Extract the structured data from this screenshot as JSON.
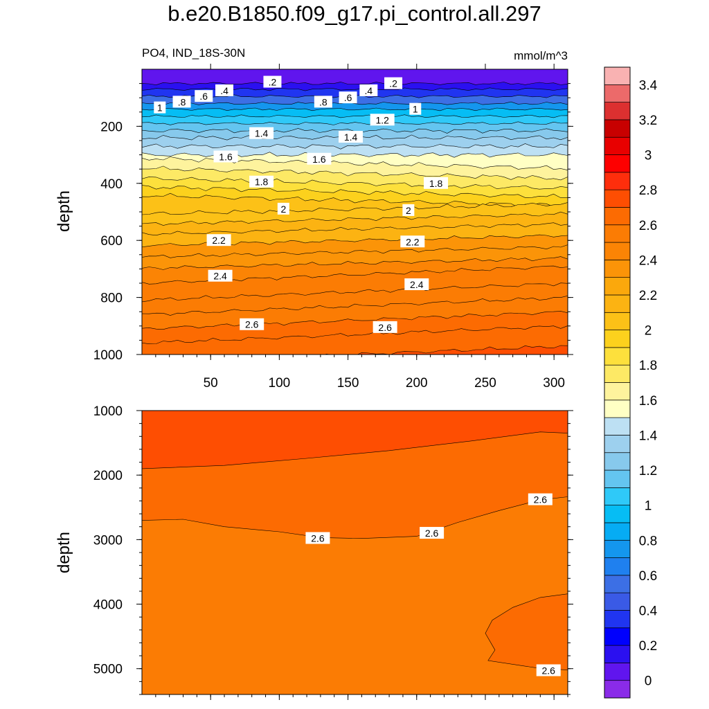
{
  "figure": {
    "title": "b.e20.B1850.f09_g17.pi_control.all.297",
    "left_label": "PO4, IND_18S-30N",
    "units": "mmol/m^3"
  },
  "chart_data": [
    {
      "type": "contour",
      "panel": "upper",
      "ylabel": "depth",
      "xlabel": "",
      "xlim": [
        0,
        310
      ],
      "ylim": [
        0,
        1000
      ],
      "y_inverted": true,
      "x_ticks": [
        50,
        100,
        150,
        200,
        250,
        300
      ],
      "y_ticks": [
        200,
        400,
        600,
        800,
        1000
      ],
      "levels": [
        0,
        0.1,
        0.2,
        0.3,
        0.4,
        0.5,
        0.6,
        0.7,
        0.8,
        0.9,
        1.0,
        1.1,
        1.2,
        1.3,
        1.4,
        1.5,
        1.6,
        1.7,
        1.8,
        1.9,
        2.0,
        2.1,
        2.2,
        2.3,
        2.4,
        2.5,
        2.6,
        2.7,
        2.8
      ],
      "level_depth_profile": {
        "depth": [
          50,
          70,
          95,
          120,
          140,
          165,
          190,
          215,
          240,
          270,
          300,
          330,
          365,
          400,
          430,
          460,
          490,
          525,
          560,
          600,
          640,
          680,
          720,
          780,
          830,
          880,
          930,
          1000
        ],
        "value": [
          0.1,
          0.3,
          0.5,
          0.7,
          0.9,
          1.0,
          1.1,
          1.2,
          1.3,
          1.4,
          1.5,
          1.6,
          1.7,
          1.8,
          1.85,
          1.95,
          2.0,
          2.1,
          2.15,
          2.25,
          2.3,
          2.4,
          2.45,
          2.5,
          2.55,
          2.6,
          2.65,
          2.7
        ]
      },
      "contour_labels": [
        {
          "text": ".2",
          "x": 95,
          "y": 45
        },
        {
          "text": ".2",
          "x": 183,
          "y": 50
        },
        {
          "text": ".4",
          "x": 60,
          "y": 75
        },
        {
          "text": ".4",
          "x": 165,
          "y": 75
        },
        {
          "text": ".6",
          "x": 45,
          "y": 95
        },
        {
          "text": ".6",
          "x": 150,
          "y": 100
        },
        {
          "text": ".8",
          "x": 29,
          "y": 115
        },
        {
          "text": ".8",
          "x": 132,
          "y": 115
        },
        {
          "text": "1",
          "x": 13,
          "y": 135
        },
        {
          "text": "1",
          "x": 199,
          "y": 140
        },
        {
          "text": "1.2",
          "x": 175,
          "y": 178
        },
        {
          "text": "1.4",
          "x": 87,
          "y": 225
        },
        {
          "text": "1.4",
          "x": 152,
          "y": 238
        },
        {
          "text": "1.6",
          "x": 61,
          "y": 307
        },
        {
          "text": "1.6",
          "x": 129,
          "y": 315
        },
        {
          "text": "1.8",
          "x": 87,
          "y": 395
        },
        {
          "text": "1.8",
          "x": 214,
          "y": 400
        },
        {
          "text": "2",
          "x": 103,
          "y": 490
        },
        {
          "text": "2",
          "x": 194,
          "y": 495
        },
        {
          "text": "2.2",
          "x": 56,
          "y": 600
        },
        {
          "text": "2.2",
          "x": 197,
          "y": 605
        },
        {
          "text": "2.4",
          "x": 57,
          "y": 725
        },
        {
          "text": "2.4",
          "x": 200,
          "y": 755
        },
        {
          "text": "2.6",
          "x": 80,
          "y": 895
        },
        {
          "text": "2.6",
          "x": 177,
          "y": 905
        }
      ]
    },
    {
      "type": "contour",
      "panel": "lower",
      "ylabel": "depth",
      "xlabel": "",
      "xlim": [
        0,
        310
      ],
      "ylim": [
        1000,
        5400
      ],
      "y_inverted": true,
      "y_ticks": [
        1000,
        2000,
        3000,
        4000,
        5000
      ],
      "regions": [
        {
          "value_range": [
            2.7,
            2.8
          ],
          "description": "upper wedge 1000-1900 m"
        },
        {
          "value_range": [
            2.6,
            2.7
          ],
          "description": "middle band"
        },
        {
          "value_range": [
            2.5,
            2.6
          ],
          "description": "deep water"
        },
        {
          "value_range": [
            2.6,
            2.7
          ],
          "description": "deep patch east 3850-5000 m"
        }
      ],
      "contour_labels": [
        {
          "text": "2.6",
          "x": 128,
          "y": 2980
        },
        {
          "text": "2.6",
          "x": 211,
          "y": 2900
        },
        {
          "text": "2.6",
          "x": 290,
          "y": 2380
        },
        {
          "text": "2.6",
          "x": 296,
          "y": 5030
        }
      ]
    }
  ],
  "colorbar": {
    "labels": [
      "3.4",
      "3.2",
      "3",
      "2.8",
      "2.6",
      "2.4",
      "2.2",
      "2",
      "1.8",
      "1.6",
      "1.4",
      "1.2",
      "1",
      "0.8",
      "0.6",
      "0.4",
      "0.2",
      "0"
    ],
    "colors": [
      "#8a2be8",
      "#6015ee",
      "#2b10f0",
      "#0000fd",
      "#2035f0",
      "#3a5ae6",
      "#3c6fe5",
      "#1f80ef",
      "#1496ee",
      "#06acf4",
      "#06bdf4",
      "#2fc9f8",
      "#64c5f0",
      "#87c9ec",
      "#9dd0ee",
      "#bde0f3",
      "#ffffc4",
      "#fef39d",
      "#fde965",
      "#fde03c",
      "#fcd11d",
      "#fcc117",
      "#fcb312",
      "#fba80c",
      "#fb9408",
      "#fb8405",
      "#fb7c04",
      "#fc6b02",
      "#fe4e02",
      "#fe2e0c",
      "#fe0000",
      "#e80000",
      "#c80000",
      "#dc3030",
      "#ec6a6a",
      "#f9b2b2"
    ]
  }
}
